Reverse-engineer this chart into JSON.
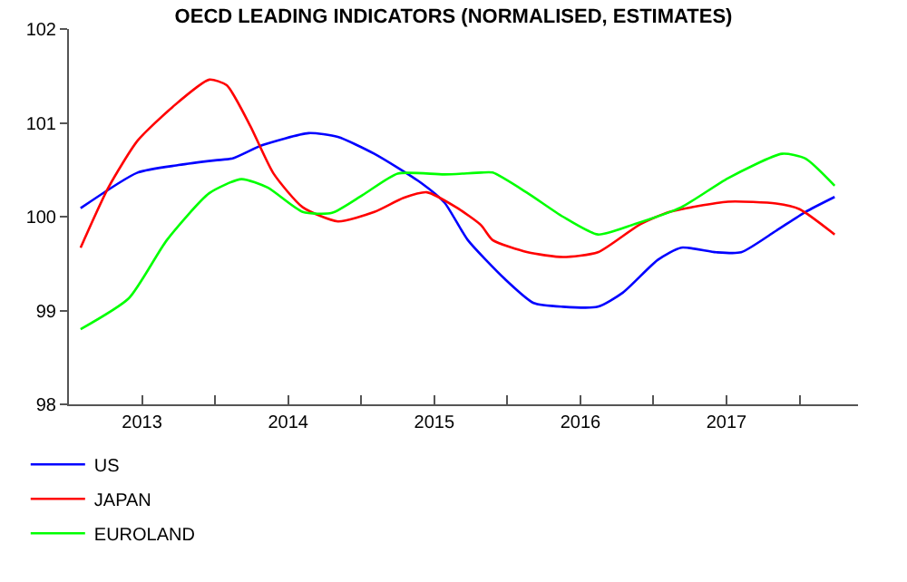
{
  "chart_data": {
    "type": "line",
    "title": "OECD LEADING INDICATORS (NORMALISED, ESTIMATES)",
    "xlim": [
      2013,
      2018.4
    ],
    "ylim": [
      98,
      102
    ],
    "yticks": [
      98,
      99,
      100,
      101,
      102
    ],
    "xticks": [
      {
        "value": 2013,
        "label": null
      },
      {
        "value": 2013.5,
        "label": "2013"
      },
      {
        "value": 2014,
        "label": null
      },
      {
        "value": 2014.5,
        "label": "2014"
      },
      {
        "value": 2015,
        "label": null
      },
      {
        "value": 2015.5,
        "label": "2015"
      },
      {
        "value": 2016,
        "label": null
      },
      {
        "value": 2016.5,
        "label": "2016"
      },
      {
        "value": 2017,
        "label": null
      },
      {
        "value": 2017.5,
        "label": "2017"
      },
      {
        "value": 2018,
        "label": null
      }
    ],
    "grid": false,
    "legend": "bottom left",
    "marker": "none",
    "line_style": "solid",
    "series": [
      {
        "name": "US",
        "color": "#0000ff",
        "x": [
          2013.08,
          2013.47,
          2013.75,
          2014.0,
          2014.12,
          2014.32,
          2014.64,
          2014.84,
          2015.09,
          2015.41,
          2015.57,
          2015.73,
          2015.98,
          2016.18,
          2016.38,
          2016.62,
          2016.79,
          2017.03,
          2017.19,
          2017.43,
          2017.6,
          2017.84,
          2018.04,
          2018.24
        ],
        "values": [
          100.09,
          100.47,
          100.55,
          100.6,
          100.62,
          100.76,
          100.89,
          100.85,
          100.67,
          100.36,
          100.15,
          99.75,
          99.34,
          99.08,
          99.04,
          99.04,
          99.19,
          99.54,
          99.67,
          99.62,
          99.62,
          99.85,
          100.05,
          100.21
        ]
      },
      {
        "name": "JAPAN",
        "color": "#ff0000",
        "x": [
          2013.08,
          2013.27,
          2013.47,
          2013.71,
          2013.96,
          2014.08,
          2014.24,
          2014.4,
          2014.6,
          2014.84,
          2015.09,
          2015.29,
          2015.45,
          2015.65,
          2015.82,
          2015.9,
          2016.14,
          2016.38,
          2016.62,
          2016.91,
          2017.11,
          2017.51,
          2017.84,
          2018.0,
          2018.24
        ],
        "values": [
          99.67,
          100.31,
          100.81,
          101.17,
          101.46,
          101.4,
          100.97,
          100.46,
          100.1,
          99.95,
          100.05,
          100.2,
          100.26,
          100.1,
          99.91,
          99.75,
          99.62,
          99.57,
          99.62,
          99.92,
          100.05,
          100.16,
          100.14,
          100.08,
          99.81
        ]
      },
      {
        "name": "EUROLAND",
        "color": "#00ff00",
        "x": [
          2013.08,
          2013.41,
          2013.67,
          2013.96,
          2014.18,
          2014.36,
          2014.6,
          2014.8,
          2015.01,
          2015.25,
          2015.57,
          2015.82,
          2015.9,
          2016.14,
          2016.38,
          2016.62,
          2016.87,
          2017.19,
          2017.51,
          2017.88,
          2018.04,
          2018.24
        ],
        "values": [
          98.8,
          99.13,
          99.75,
          100.25,
          100.4,
          100.31,
          100.05,
          100.04,
          100.23,
          100.46,
          100.45,
          100.47,
          100.47,
          100.25,
          100.0,
          99.81,
          99.92,
          100.1,
          100.41,
          100.67,
          100.62,
          100.33
        ]
      }
    ]
  }
}
